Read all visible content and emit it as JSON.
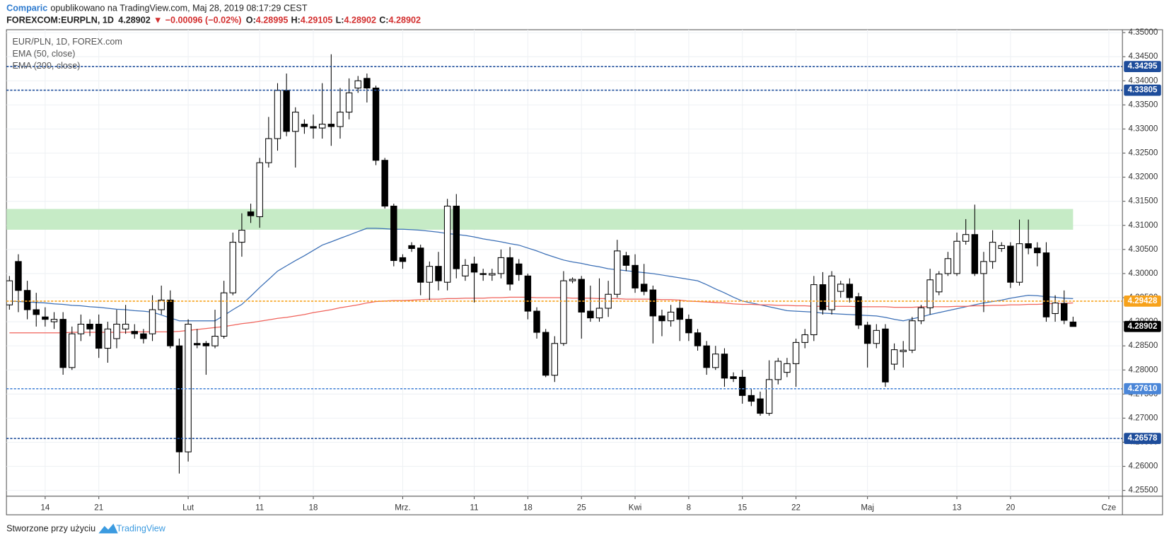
{
  "header": {
    "author": "Comparic",
    "published": "opublikowano na TradingView.com, Maj 28, 2019 08:17:29 CEST",
    "symbol": "FOREXCOM:EURPLN, 1D",
    "change": "−0.00096 (−0.02%)",
    "o_label": "O:",
    "h_label": "H:",
    "l_label": "L:",
    "c_label": "C:"
  },
  "chart_data": {
    "type": "candlestick",
    "symbol_label": "EUR/PLN, 1D, FOREX.com",
    "categories": [
      null,
      null,
      null,
      null,
      "14",
      null,
      null,
      null,
      null,
      null,
      "21",
      null,
      null,
      null,
      null,
      null,
      null,
      null,
      null,
      null,
      "Lut",
      null,
      null,
      null,
      null,
      null,
      null,
      null,
      "11",
      null,
      null,
      null,
      null,
      null,
      "18",
      null,
      null,
      null,
      null,
      null,
      null,
      null,
      null,
      null,
      "Mrz.",
      null,
      null,
      null,
      null,
      null,
      null,
      null,
      "11",
      null,
      null,
      null,
      null,
      null,
      "18",
      null,
      null,
      null,
      null,
      null,
      "25",
      null,
      null,
      null,
      null,
      null,
      "Kwi",
      null,
      null,
      null,
      null,
      null,
      "8",
      null,
      null,
      null,
      null,
      null,
      "15",
      null,
      null,
      null,
      null,
      null,
      "22",
      null,
      null,
      null,
      null,
      null,
      null,
      null,
      "Maj",
      null,
      null,
      null,
      null,
      null,
      null,
      null,
      null,
      null,
      "13",
      null,
      null,
      null,
      null,
      null,
      "20",
      null,
      null,
      null,
      null,
      null,
      null,
      null,
      null,
      null,
      null,
      "Cze"
    ],
    "open": [
      4.2935,
      4.3025,
      4.2965,
      4.2925,
      4.291,
      4.29,
      4.2905,
      4.2805,
      4.2875,
      4.2895,
      4.2895,
      4.2845,
      4.2865,
      4.2885,
      4.288,
      4.2875,
      4.2875,
      4.2925,
      4.2945,
      4.285,
      4.263,
      4.2855,
      4.2855,
      4.285,
      4.287,
      4.296,
      4.3065,
      4.3128,
      4.3118,
      4.323,
      4.328,
      4.338,
      4.3295,
      4.331,
      4.3305,
      4.3302,
      4.331,
      4.3305,
      4.3335,
      4.3385,
      4.3405,
      4.3385,
      4.3235,
      4.314,
      4.3033,
      4.3058,
      4.3053,
      4.2982,
      4.3015,
      4.2982,
      4.314,
      4.2995,
      4.302,
      4.3,
      4.2997,
      4.3,
      4.3033,
      4.302,
      4.2995,
      4.2922,
      4.2878,
      4.2789,
      4.2855,
      4.2985,
      4.2988,
      4.2922,
      4.2908,
      4.2928,
      4.2957,
      4.3037,
      4.3017,
      4.2978,
      4.2966,
      4.2912,
      4.2902,
      4.2928,
      4.2905,
      4.2877,
      4.285,
      4.2805,
      4.2833,
      4.2786,
      4.2785,
      4.2747,
      4.274,
      4.271,
      4.278,
      4.2795,
      4.2813,
      4.2857,
      4.2873,
      4.2977,
      4.2925,
      4.2963,
      4.2978,
      4.2952,
      4.2893,
      4.2855,
      4.2885,
      4.2812,
      4.2838,
      4.2841,
      4.2902,
      4.2929,
      4.2962,
      4.3,
      4.3,
      4.3067,
      4.3081,
      4.3,
      4.3025,
      4.3052,
      4.3057,
      4.2982,
      4.3062,
      4.3053,
      4.3043,
      4.2917,
      4.2938,
      4.28995,
      null,
      null,
      null,
      null
    ],
    "high": [
      4.2995,
      4.304,
      4.2985,
      4.296,
      4.293,
      4.292,
      4.292,
      4.289,
      4.2915,
      4.2905,
      4.2915,
      4.29,
      4.2925,
      4.2935,
      4.2895,
      4.2885,
      4.2955,
      4.2975,
      4.2965,
      4.2865,
      4.2905,
      4.2885,
      4.286,
      4.2925,
      4.2985,
      4.3085,
      4.3125,
      4.3145,
      4.324,
      4.3325,
      4.3395,
      4.3415,
      4.3345,
      4.332,
      4.333,
      4.3395,
      4.3455,
      4.3385,
      4.3405,
      4.341,
      4.3415,
      4.339,
      4.324,
      4.3145,
      4.304,
      4.3065,
      4.306,
      4.3025,
      4.3045,
      4.3155,
      4.3165,
      4.303,
      4.3035,
      4.301,
      4.301,
      4.305,
      4.3055,
      4.303,
      4.3,
      4.293,
      4.2885,
      4.287,
      4.3005,
      4.2992,
      4.2995,
      4.2975,
      4.299,
      4.2985,
      4.307,
      4.3045,
      4.304,
      4.302,
      4.2975,
      4.2925,
      4.2935,
      4.2945,
      4.2915,
      4.2885,
      4.286,
      4.285,
      4.2845,
      4.2795,
      4.28,
      4.276,
      4.2755,
      4.282,
      4.2825,
      4.2825,
      4.2865,
      4.2885,
      4.2995,
      4.3003,
      4.3005,
      4.2985,
      4.299,
      4.296,
      4.29,
      4.2895,
      4.2895,
      4.2855,
      4.286,
      4.291,
      4.2935,
      4.301,
      4.3005,
      4.3045,
      4.3085,
      4.3113,
      4.3143,
      4.3045,
      4.309,
      4.3065,
      4.3065,
      4.3112,
      4.3112,
      4.3065,
      4.3065,
      4.2955,
      4.2965,
      4.29105,
      null,
      null,
      null,
      null
    ],
    "low": [
      4.2925,
      4.292,
      4.2905,
      4.289,
      4.289,
      4.2885,
      4.279,
      4.28,
      4.286,
      4.287,
      4.2825,
      4.2815,
      4.2845,
      4.2875,
      4.2865,
      4.2855,
      4.286,
      4.2915,
      4.2845,
      4.2585,
      4.261,
      4.2845,
      4.279,
      4.2845,
      4.2865,
      4.2955,
      4.3035,
      4.3105,
      4.3095,
      4.322,
      4.3255,
      4.3285,
      4.322,
      4.329,
      4.328,
      4.328,
      4.3265,
      4.328,
      4.332,
      4.3375,
      4.3355,
      4.3225,
      4.3135,
      4.3015,
      4.301,
      4.3045,
      4.2955,
      4.2945,
      4.2965,
      4.2965,
      4.299,
      4.2985,
      4.294,
      4.2985,
      4.2985,
      4.299,
      4.2965,
      4.2985,
      4.2905,
      4.2865,
      4.2785,
      4.2775,
      4.285,
      4.298,
      4.2865,
      4.29,
      4.29,
      4.291,
      4.295,
      4.3005,
      4.296,
      4.2955,
      4.2855,
      4.287,
      4.289,
      4.286,
      4.286,
      4.284,
      4.279,
      4.28,
      4.2765,
      4.2775,
      4.273,
      4.2725,
      4.2705,
      4.2705,
      4.277,
      4.2785,
      4.2765,
      4.2845,
      4.286,
      4.2915,
      4.2915,
      4.295,
      4.294,
      4.2885,
      4.2805,
      4.2845,
      4.2765,
      4.28,
      4.2805,
      4.2835,
      4.2895,
      4.2915,
      4.2955,
      4.2995,
      4.2995,
      4.306,
      4.2995,
      4.292,
      4.301,
      4.3045,
      4.297,
      4.2975,
      4.304,
      4.3015,
      4.29,
      4.29,
      4.2895,
      4.28902,
      null,
      null,
      null,
      null
    ],
    "close": [
      4.2985,
      4.2965,
      4.2925,
      4.2915,
      4.2905,
      4.2905,
      4.2805,
      4.2875,
      4.2895,
      4.2885,
      4.2845,
      4.2885,
      4.2895,
      4.2895,
      4.2875,
      4.2865,
      4.2925,
      4.2945,
      4.285,
      4.263,
      4.2895,
      4.2852,
      4.285,
      4.287,
      4.296,
      4.3065,
      4.309,
      4.312,
      4.323,
      4.328,
      4.338,
      4.3295,
      4.3335,
      4.3305,
      4.3302,
      4.331,
      4.3305,
      4.3335,
      4.3375,
      4.34,
      4.3385,
      4.3235,
      4.314,
      4.3027,
      4.3025,
      4.3052,
      4.2982,
      4.3015,
      4.2985,
      4.314,
      4.301,
      4.3017,
      4.3003,
      4.2998,
      4.3,
      4.3033,
      4.2978,
      4.2998,
      4.2922,
      4.2878,
      4.2789,
      4.2855,
      4.2985,
      4.2988,
      4.292,
      4.2908,
      4.2928,
      4.2957,
      4.3047,
      4.3017,
      4.297,
      4.2963,
      4.2912,
      4.2902,
      4.292,
      4.2905,
      4.2877,
      4.285,
      4.2805,
      4.2833,
      4.2783,
      4.2782,
      4.2747,
      4.2735,
      4.271,
      4.278,
      4.2818,
      4.2813,
      4.2857,
      4.2873,
      4.2977,
      4.2925,
      4.2995,
      4.2978,
      4.295,
      4.2893,
      4.2855,
      4.2882,
      4.2775,
      4.2842,
      4.2841,
      4.2902,
      4.2929,
      4.2987,
      4.2999,
      4.3031,
      4.3067,
      4.3081,
      4.3,
      4.3025,
      4.3065,
      4.3058,
      4.2982,
      4.3062,
      4.3053,
      4.3043,
      4.291,
      4.2939,
      4.2903,
      4.28902,
      null,
      null,
      null,
      null
    ],
    "up_color": "#ffffff",
    "down_color": "#000000",
    "series": [
      {
        "name": "EMA (50, close)",
        "color": "#3b6fb6",
        "values": [
          4.2943,
          4.2942,
          4.2941,
          4.294,
          4.2939,
          4.2937,
          4.2936,
          4.2934,
          4.2933,
          4.2931,
          4.293,
          4.2928,
          4.2926,
          4.2925,
          4.2923,
          4.2922,
          4.292,
          4.2914,
          4.2908,
          4.2902,
          4.2902,
          4.2902,
          4.2902,
          4.2902,
          4.2913,
          4.2925,
          4.2936,
          4.2953,
          4.2971,
          4.2988,
          4.3005,
          4.3016,
          4.3027,
          4.3037,
          4.3048,
          4.3059,
          4.3066,
          4.3073,
          4.308,
          4.3087,
          4.3094,
          4.3094,
          4.3093,
          4.3092,
          4.3092,
          4.3091,
          4.309,
          4.3088,
          4.3086,
          4.3083,
          4.3081,
          4.3079,
          4.3076,
          4.3072,
          4.3069,
          4.3066,
          4.3062,
          4.3059,
          4.3053,
          4.3047,
          4.304,
          4.3034,
          4.3028,
          4.3024,
          4.3021,
          4.3017,
          4.3014,
          4.301,
          4.3008,
          4.3006,
          4.3004,
          4.3002,
          4.3,
          4.2997,
          4.2994,
          4.2991,
          4.2988,
          4.2985,
          4.2977,
          4.2968,
          4.296,
          4.2951,
          4.2943,
          4.2939,
          4.2935,
          4.2931,
          4.2927,
          4.2923,
          4.2922,
          4.2921,
          4.292,
          4.2918,
          4.2917,
          4.2916,
          4.2915,
          4.2914,
          4.2913,
          4.2912,
          4.2909,
          4.2905,
          4.2902,
          4.2906,
          4.291,
          4.2915,
          4.2919,
          4.2923,
          4.2927,
          4.2931,
          4.2935,
          4.2939,
          4.2942,
          4.2945,
          4.2949,
          4.2952,
          4.2955,
          4.2954,
          4.2952,
          4.2951,
          4.2949,
          4.2948,
          null,
          null,
          null,
          null
        ]
      },
      {
        "name": "EMA (200, close)",
        "color": "#f0625a",
        "values": [
          4.2877,
          4.2877,
          4.2877,
          4.2877,
          4.2877,
          4.2877,
          4.2877,
          4.2878,
          4.2878,
          4.2878,
          4.2878,
          4.2878,
          4.2878,
          4.2878,
          4.2879,
          4.2879,
          4.2879,
          4.2879,
          4.2879,
          4.288,
          4.2882,
          4.2884,
          4.2886,
          4.2888,
          4.289,
          4.2893,
          4.2896,
          4.2898,
          4.2901,
          4.2904,
          4.2907,
          4.2909,
          4.2912,
          4.2915,
          4.2919,
          4.2922,
          4.2925,
          4.2929,
          4.2932,
          4.2935,
          4.2939,
          4.2942,
          4.2943,
          4.2944,
          4.2944,
          4.2945,
          4.2946,
          4.2947,
          4.2947,
          4.2948,
          4.2948,
          4.2949,
          4.2949,
          4.2949,
          4.295,
          4.295,
          4.2951,
          4.2951,
          4.2951,
          4.295,
          4.295,
          4.295,
          4.295,
          4.2949,
          4.2949,
          4.2949,
          4.2948,
          4.2948,
          4.2948,
          4.2947,
          4.2947,
          4.2947,
          4.2947,
          4.2946,
          4.2946,
          4.2945,
          4.2943,
          4.2942,
          4.2941,
          4.294,
          4.2939,
          4.2937,
          4.2936,
          4.2936,
          4.2935,
          4.2935,
          4.2934,
          4.2934,
          4.2933,
          4.2933,
          4.2932,
          4.2932,
          4.2932,
          4.2932,
          4.2932,
          4.2931,
          4.2931,
          4.2931,
          4.2931,
          4.293,
          4.293,
          4.293,
          4.2931,
          4.2931,
          4.2931,
          4.2931,
          4.2932,
          4.2932,
          4.2933,
          4.2933,
          4.2934,
          4.2934,
          4.2935,
          4.2935,
          4.2936,
          4.2936,
          4.2937,
          4.2938,
          4.2938,
          4.2939,
          null,
          null,
          null,
          null
        ]
      }
    ],
    "ylim": [
      4.2538,
      4.3506
    ],
    "yticks": [
      {
        "value": 4.255,
        "label": "4.25500"
      },
      {
        "value": 4.26,
        "label": "4.26000"
      },
      {
        "value": 4.265,
        "label": "4.26500"
      },
      {
        "value": 4.27,
        "label": "4.27000"
      },
      {
        "value": 4.275,
        "label": "4.27500"
      },
      {
        "value": 4.28,
        "label": "4.28000"
      },
      {
        "value": 4.285,
        "label": "4.28500"
      },
      {
        "value": 4.29,
        "label": "4.29000"
      },
      {
        "value": 4.295,
        "label": "4.29500"
      },
      {
        "value": 4.3,
        "label": "4.30000"
      },
      {
        "value": 4.305,
        "label": "4.30500"
      },
      {
        "value": 4.31,
        "label": "4.31000"
      },
      {
        "value": 4.315,
        "label": "4.31500"
      },
      {
        "value": 4.32,
        "label": "4.32000"
      },
      {
        "value": 4.325,
        "label": "4.32500"
      },
      {
        "value": 4.33,
        "label": "4.33000"
      },
      {
        "value": 4.335,
        "label": "4.33500"
      },
      {
        "value": 4.34,
        "label": "4.34000"
      },
      {
        "value": 4.345,
        "label": "4.34500"
      },
      {
        "value": 4.35,
        "label": "4.35000"
      }
    ],
    "grid": true,
    "levels": [
      {
        "value": 4.34295,
        "color": "#1e4d9b"
      },
      {
        "value": 4.33805,
        "color": "#1e4d9b"
      },
      {
        "value": 4.2761,
        "label": "4.27610",
        "color": "#4a86d8"
      },
      {
        "value": 4.26578,
        "color": "#1e4d9b"
      },
      {
        "value": 4.29428,
        "color": "#f7a21b"
      }
    ],
    "zones": [
      {
        "from": 4.3091,
        "to": 4.3134,
        "color": "#c6ebc6"
      }
    ],
    "last_color": "#000000"
  },
  "footer": {
    "text": "Stworzone przy użyciu",
    "brand": "TradingView"
  }
}
